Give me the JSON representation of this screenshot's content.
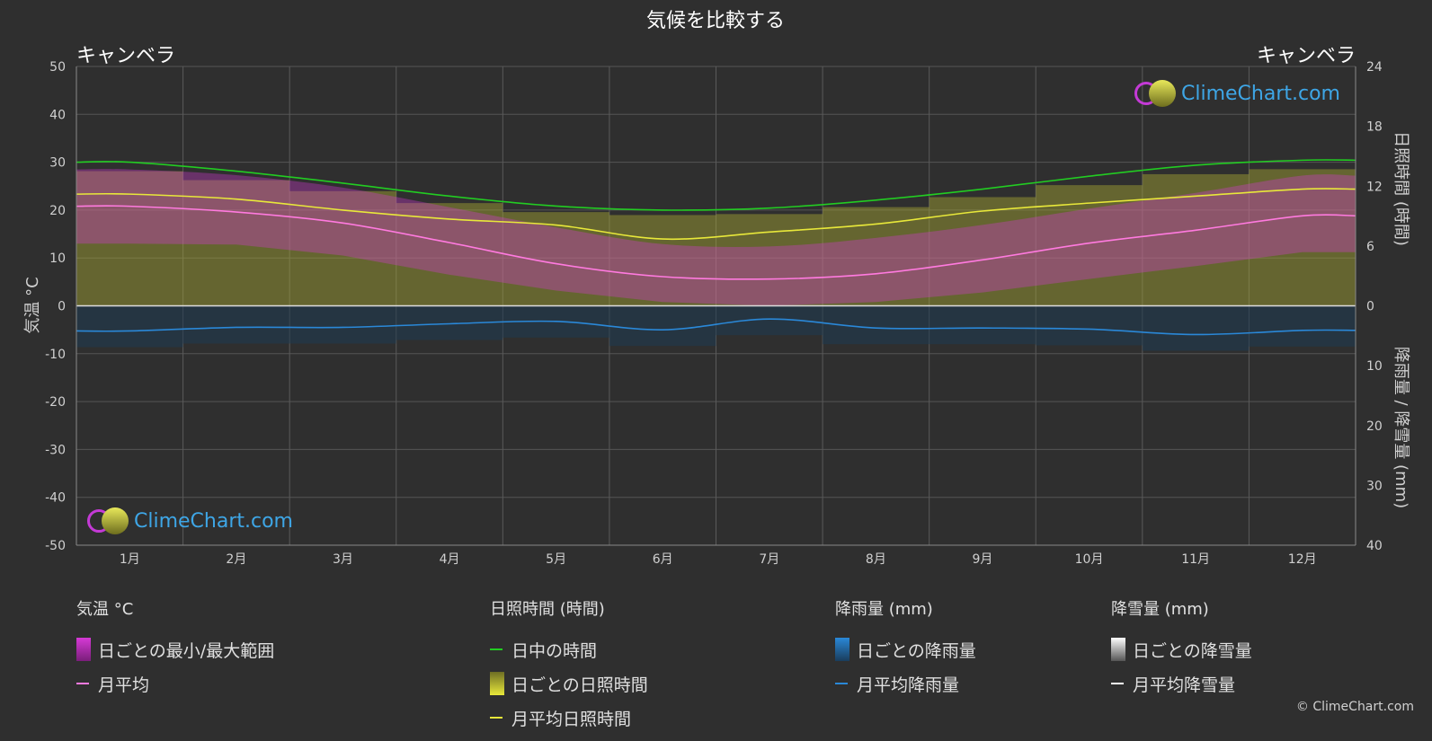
{
  "title": "気候を比較する",
  "city_left": "キャンベラ",
  "city_right": "キャンベラ",
  "logo_text": "ClimeChart.com",
  "copyright": "© ClimeChart.com",
  "chart_data": {
    "type": "area",
    "months": [
      "1月",
      "2月",
      "3月",
      "4月",
      "5月",
      "6月",
      "7月",
      "8月",
      "9月",
      "10月",
      "11月",
      "12月"
    ],
    "left_axis": {
      "label": "気温 °C",
      "min": -50,
      "max": 50,
      "ticks": [
        50,
        40,
        30,
        20,
        10,
        0,
        -10,
        -20,
        -30,
        -40,
        -50
      ]
    },
    "right_axis_top": {
      "label": "日照時間 (時間)",
      "min": 0,
      "max": 24,
      "ticks": [
        24,
        18,
        12,
        6,
        0
      ]
    },
    "right_axis_bottom": {
      "label": "降雨量 / 降雪量 (mm)",
      "min": 0,
      "max": 40,
      "ticks": [
        0,
        10,
        20,
        30,
        40
      ]
    },
    "series": [
      {
        "name": "日中の時間",
        "unit": "hours",
        "color": "#22cc22",
        "values": [
          14.4,
          13.5,
          12.3,
          11.0,
          10.0,
          9.6,
          9.8,
          10.6,
          11.7,
          13.0,
          14.1,
          14.6
        ]
      },
      {
        "name": "月平均日照時間",
        "unit": "hours",
        "color": "#e8e83a",
        "values": [
          11.2,
          10.7,
          9.6,
          8.7,
          8.1,
          6.7,
          7.4,
          8.2,
          9.5,
          10.3,
          11.0,
          11.7
        ]
      },
      {
        "name": "月平均",
        "unit": "°C",
        "color": "#ff7adf",
        "values": [
          20.8,
          19.6,
          17.3,
          13.2,
          8.8,
          6.1,
          5.6,
          6.7,
          9.6,
          13.1,
          15.8,
          18.8
        ]
      },
      {
        "name": "月平均降雨量",
        "unit": "mm",
        "color": "#2a88d8",
        "values": [
          4.2,
          3.6,
          3.6,
          3.0,
          2.6,
          4.0,
          2.2,
          3.7,
          3.7,
          3.9,
          4.8,
          4.1
        ]
      },
      {
        "name": "日ごとの最小/最大範囲",
        "unit": "°C",
        "color": "#d83ad8",
        "max": [
          28.5,
          27.3,
          24.7,
          20.6,
          16.4,
          12.9,
          12.4,
          14.2,
          16.9,
          20.3,
          23.6,
          27.2
        ],
        "min": [
          13.0,
          12.8,
          10.5,
          6.5,
          3.2,
          0.8,
          0.0,
          0.8,
          2.8,
          5.6,
          8.3,
          11.2
        ]
      },
      {
        "name": "日ごとの日照時間",
        "unit": "hours",
        "color": "#a8a832",
        "values": [
          13.5,
          12.6,
          11.5,
          10.3,
          9.4,
          9.1,
          9.2,
          9.9,
          10.9,
          12.1,
          13.2,
          13.7
        ]
      }
    ]
  },
  "legend": {
    "temp": {
      "heading": "気温 °C",
      "items": [
        {
          "label": "日ごとの最小/最大範囲",
          "swatch": "#d63ad6"
        },
        {
          "label": "月平均",
          "swatch": "#ff7adf"
        }
      ]
    },
    "sun": {
      "heading": "日照時間 (時間)",
      "items": [
        {
          "label": "日中の時間",
          "swatch": "#22cc22"
        },
        {
          "label": "日ごとの日照時間",
          "swatch": "#d4d440"
        },
        {
          "label": "月平均日照時間",
          "swatch": "#e8e83a"
        }
      ]
    },
    "rain": {
      "heading": "降雨量 (mm)",
      "items": [
        {
          "label": "日ごとの降雨量",
          "swatch": "#2a88d8"
        },
        {
          "label": "月平均降雨量",
          "swatch": "#2a88d8"
        }
      ]
    },
    "snow": {
      "heading": "降雪量 (mm)",
      "items": [
        {
          "label": "日ごとの降雪量",
          "swatch": "#dddddd"
        },
        {
          "label": "月平均降雪量",
          "swatch": "#ffffff"
        }
      ]
    }
  }
}
